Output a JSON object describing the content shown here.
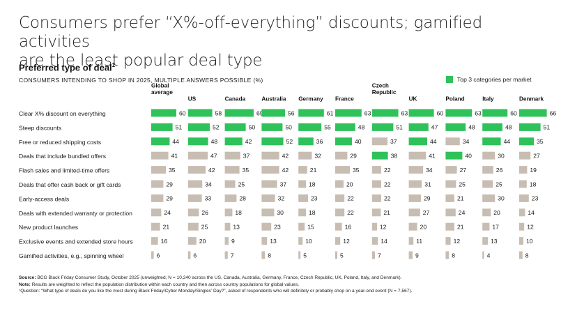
{
  "title_line1": "Consumers prefer “X%-off-everything” discounts; gamified activities",
  "title_line2": "are the least popular deal type",
  "subtitle": "Preferred type of deal",
  "subtitle_note_mark": "1",
  "unit_line": "CONSUMERS INTENDING TO SHOP IN 2025, MULTIPLE ANSWERS POSSIBLE (%)",
  "legend_label": "Top 3 categories per market",
  "colors": {
    "top3": "#2fc25b",
    "other": "#c8bdb2"
  },
  "footnotes": {
    "source_label": "Source:",
    "source_text": " BCG Black Friday Consumer Study, October 2025 (unweighted, N = 10,240 across the US, Canada, Australia, Germany, France, Czech Republic, UK, Poland, Italy, and Denmark).",
    "note_label": "Note:",
    "note_text": " Results are weighted to reflect the population distribution within each country and then across country populations for global values.",
    "question_text": "¹Question: “What type of deals do you like the most during Black Friday/Cyber Monday/Singles’ Day?”, asked of respondents who will definitely or probably shop on a year-end event (N = 7,567)."
  },
  "chart_data": {
    "type": "bar",
    "categories": [
      "Clear X% discount on everything",
      "Steep discounts",
      "Free or reduced shipping costs",
      "Deals that include bundled offers",
      "Flash sales and limited-time offers",
      "Deals that offer cash back or gift cards",
      "Early-access deals",
      "Deals with extended warranty or protection",
      "New product launches",
      "Exclusive events and extended store hours",
      "Gamified activities, e.g., spinning wheel"
    ],
    "xlim": [
      0,
      70
    ],
    "series": [
      {
        "name": "Global\naverage",
        "values": [
          60,
          51,
          44,
          41,
          35,
          29,
          29,
          24,
          21,
          16,
          6
        ],
        "top3": [
          true,
          true,
          true,
          false,
          false,
          false,
          false,
          false,
          false,
          false,
          false
        ]
      },
      {
        "name": "US",
        "values": [
          58,
          52,
          48,
          47,
          42,
          34,
          33,
          26,
          25,
          20,
          6
        ],
        "top3": [
          true,
          true,
          true,
          false,
          false,
          false,
          false,
          false,
          false,
          false,
          false
        ]
      },
      {
        "name": "Canada",
        "values": [
          69,
          50,
          42,
          37,
          35,
          25,
          28,
          18,
          13,
          9,
          7
        ],
        "top3": [
          true,
          true,
          true,
          false,
          false,
          false,
          false,
          false,
          false,
          false,
          false
        ]
      },
      {
        "name": "Australia",
        "values": [
          56,
          50,
          52,
          42,
          42,
          37,
          32,
          30,
          23,
          13,
          8
        ],
        "top3": [
          true,
          true,
          true,
          false,
          false,
          false,
          false,
          false,
          false,
          false,
          false
        ]
      },
      {
        "name": "Germany",
        "values": [
          61,
          55,
          36,
          32,
          21,
          18,
          23,
          18,
          15,
          10,
          5
        ],
        "top3": [
          true,
          true,
          true,
          false,
          false,
          false,
          false,
          false,
          false,
          false,
          false
        ]
      },
      {
        "name": "France",
        "values": [
          63,
          48,
          40,
          29,
          35,
          20,
          22,
          22,
          16,
          12,
          5
        ],
        "top3": [
          true,
          true,
          true,
          false,
          false,
          false,
          false,
          false,
          false,
          false,
          false
        ]
      },
      {
        "name": "Czech\nRepublic",
        "values": [
          63,
          51,
          37,
          38,
          22,
          22,
          22,
          21,
          12,
          14,
          7
        ],
        "top3": [
          true,
          true,
          false,
          true,
          false,
          false,
          false,
          false,
          false,
          false,
          false
        ]
      },
      {
        "name": "UK",
        "values": [
          60,
          47,
          44,
          41,
          34,
          31,
          29,
          27,
          20,
          11,
          9
        ],
        "top3": [
          true,
          true,
          true,
          false,
          false,
          false,
          false,
          false,
          false,
          false,
          false
        ]
      },
      {
        "name": "Poland",
        "values": [
          63,
          48,
          34,
          40,
          27,
          25,
          21,
          24,
          21,
          12,
          8
        ],
        "top3": [
          true,
          true,
          false,
          true,
          false,
          false,
          false,
          false,
          false,
          false,
          false
        ]
      },
      {
        "name": "Italy",
        "values": [
          60,
          48,
          44,
          30,
          26,
          25,
          30,
          20,
          17,
          13,
          4
        ],
        "top3": [
          true,
          true,
          true,
          false,
          false,
          false,
          false,
          false,
          false,
          false,
          false
        ]
      },
      {
        "name": "Denmark",
        "values": [
          66,
          51,
          35,
          27,
          19,
          18,
          23,
          14,
          12,
          10,
          8
        ],
        "top3": [
          true,
          true,
          true,
          false,
          false,
          false,
          false,
          false,
          false,
          false,
          false
        ]
      }
    ]
  }
}
